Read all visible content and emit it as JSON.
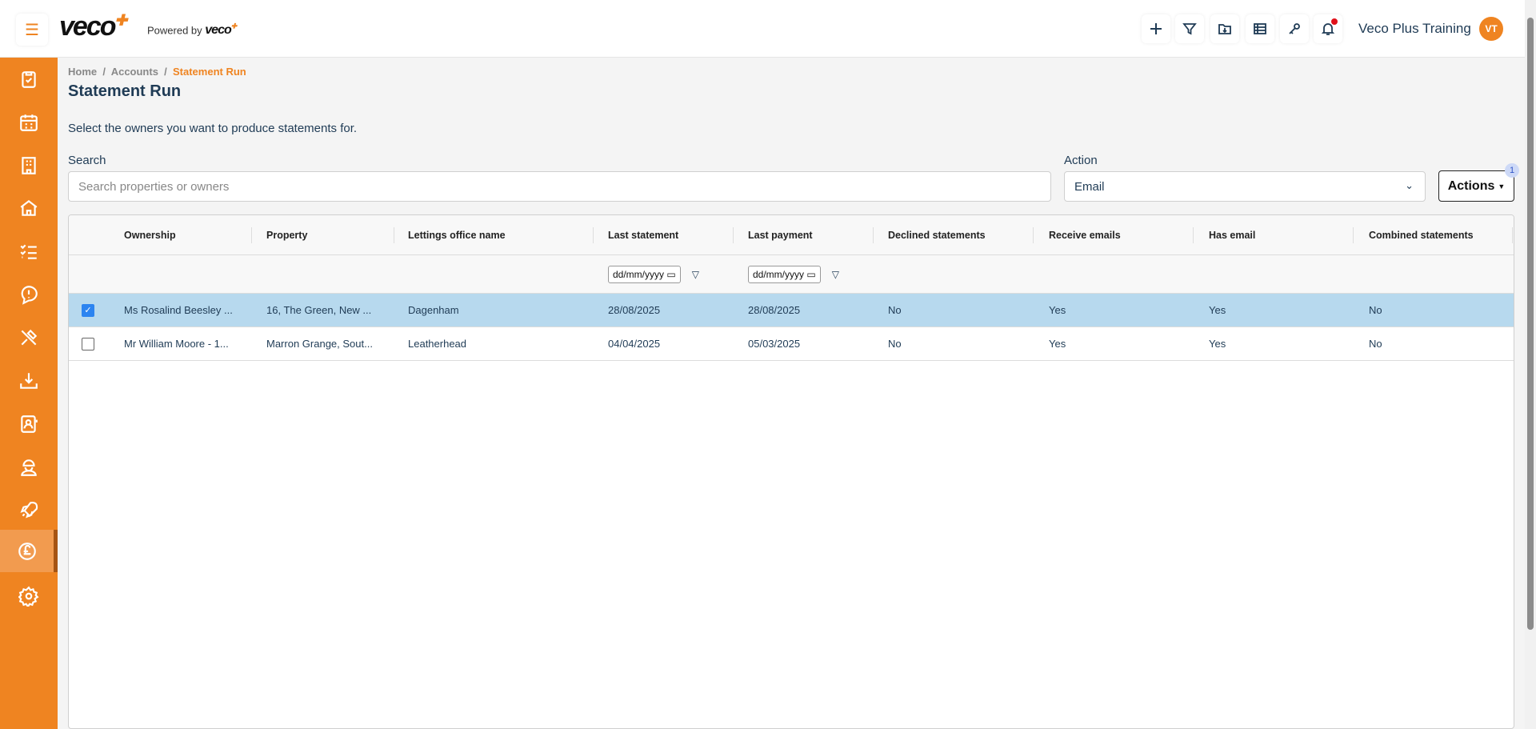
{
  "header": {
    "logo": "veco",
    "powered_by": "Powered by",
    "powered_logo": "veco",
    "user_name": "Veco Plus Training",
    "avatar_initials": "VT",
    "toolbar_icons": [
      "plus-icon",
      "filter-icon",
      "folder-download-icon",
      "table-icon",
      "key-icon",
      "bell-icon"
    ],
    "notification": true
  },
  "sidebar": {
    "items": [
      "clipboard-check-icon",
      "calendar-icon",
      "building-icon",
      "house-icon",
      "checklist-icon",
      "message-alert-icon",
      "tools-icon",
      "download-icon",
      "contacts-icon",
      "worker-icon",
      "rocket-icon",
      "pound-icon",
      "gear-icon"
    ],
    "active_index": 11
  },
  "breadcrumb": [
    "Home",
    "Accounts",
    "Statement Run"
  ],
  "page": {
    "title": "Statement Run",
    "intro": "Select the owners you want to produce statements for."
  },
  "search": {
    "label": "Search",
    "placeholder": "Search properties or owners",
    "value": ""
  },
  "action": {
    "label": "Action",
    "selected": "Email"
  },
  "actions_button": {
    "label": "Actions",
    "badge": "1"
  },
  "table": {
    "columns": [
      "Ownership",
      "Property",
      "Lettings office name",
      "Last statement",
      "Last payment",
      "Declined statements",
      "Receive emails",
      "Has email",
      "Combined statements"
    ],
    "date_placeholder": "dd/mm/yyyy",
    "rows": [
      {
        "selected": true,
        "cells": [
          "Ms Rosalind Beesley ...",
          "16, The Green, New ...",
          "Dagenham",
          "28/08/2025",
          "28/08/2025",
          "No",
          "Yes",
          "Yes",
          "No"
        ]
      },
      {
        "selected": false,
        "cells": [
          "Mr William Moore - 1...",
          "Marron Grange, Sout...",
          "Leatherhead",
          "04/04/2025",
          "05/03/2025",
          "No",
          "Yes",
          "Yes",
          "No"
        ]
      }
    ]
  },
  "colors": {
    "brand": "#ef8421",
    "selected_row": "#b7d9ee",
    "title": "#1f3b55"
  }
}
